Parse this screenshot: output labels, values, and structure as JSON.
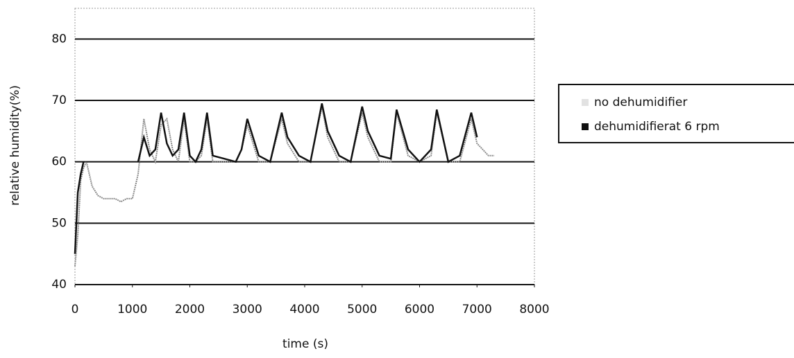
{
  "chart_data": {
    "type": "line",
    "y_label": "relative humidity(%)",
    "x_label": "time (s)",
    "x": [
      0,
      50,
      100,
      150,
      200,
      300,
      400,
      500,
      600,
      700,
      800,
      900,
      1000,
      1100,
      1200,
      1300,
      1400,
      1500,
      1600,
      1700,
      1800,
      1900,
      2000,
      2100,
      2200,
      2300,
      2400,
      2600,
      2800,
      2900,
      3000,
      3200,
      3400,
      3600,
      3700,
      3900,
      4100,
      4300,
      4400,
      4600,
      4800,
      5000,
      5100,
      5300,
      5500,
      5600,
      5800,
      6000,
      6200,
      6300,
      6500,
      6700,
      6900,
      7000,
      7200,
      7300
    ],
    "series": [
      {
        "name": "no dehumidifier",
        "color": "#8a8a8a",
        "values": [
          43,
          48,
          57,
          59,
          60,
          56,
          54.5,
          54,
          54,
          54,
          53.5,
          54,
          54,
          58,
          67,
          62,
          60,
          66,
          67,
          62,
          60,
          67,
          60,
          60,
          61,
          67,
          60,
          60,
          60,
          62,
          66,
          60,
          60,
          67,
          63,
          60,
          60,
          69,
          64,
          60,
          60,
          68,
          64,
          60,
          60,
          68,
          61,
          60,
          61,
          68,
          60,
          60,
          67,
          63,
          61,
          61
        ]
      },
      {
        "name": "dehumidifierat 6 rpm",
        "color": "#111111",
        "values": [
          45,
          55,
          58,
          60,
          null,
          null,
          null,
          null,
          null,
          null,
          null,
          null,
          null,
          60,
          64,
          61,
          62,
          68,
          63,
          61,
          62,
          68,
          61,
          60,
          62,
          68,
          61,
          60.5,
          60,
          62,
          67,
          61,
          60,
          68,
          64,
          61,
          60,
          69.5,
          65,
          61,
          60,
          69,
          65,
          61,
          60.5,
          68.5,
          62,
          60,
          62,
          68.5,
          60,
          61,
          68,
          64,
          null,
          null
        ]
      }
    ],
    "xlim": [
      0,
      8000
    ],
    "xticks": [
      0,
      1000,
      2000,
      3000,
      4000,
      5000,
      6000,
      7000,
      8000
    ],
    "ylim": [
      40,
      85
    ],
    "yticks": [
      40,
      50,
      60,
      70,
      80
    ],
    "grid": true,
    "legend": "right"
  }
}
